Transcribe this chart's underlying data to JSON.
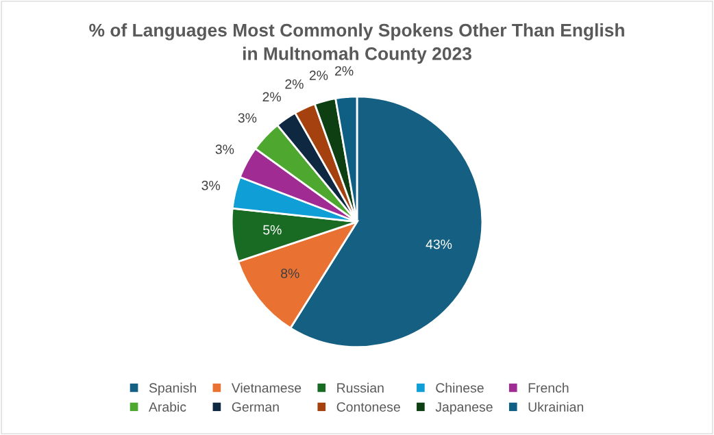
{
  "chart_data": {
    "type": "pie",
    "title": "% of Languages Most Commonly Spokens Other Than English\nin Multnomah County 2023",
    "categories": [
      "Spanish",
      "Vietnamese",
      "Russian",
      "Chinese",
      "French",
      "Arabic",
      "German",
      "Contonese",
      "Japanese",
      "Ukrainian"
    ],
    "values": [
      43,
      8,
      5,
      3,
      3,
      3,
      2,
      2,
      2,
      2
    ],
    "value_labels": [
      "43%",
      "8%",
      "5%",
      "3%",
      "3%",
      "3%",
      "2%",
      "2%",
      "2%",
      "2%"
    ],
    "colors": [
      "#156082",
      "#e97132",
      "#196b24",
      "#0f9ed5",
      "#a02b93",
      "#4ea72e",
      "#0e2841",
      "#a5410e",
      "#0e3f12",
      "#0f5f84"
    ],
    "legend": "bottom"
  }
}
